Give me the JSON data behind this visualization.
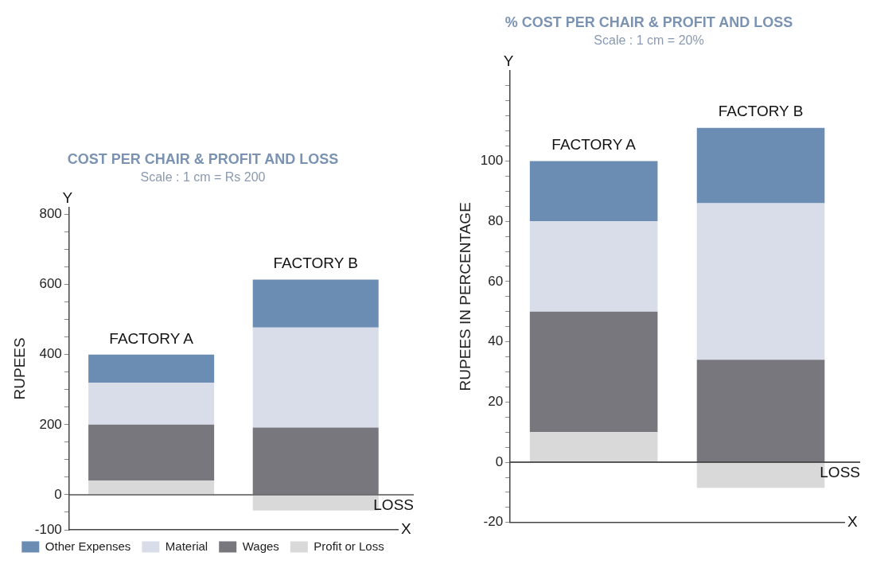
{
  "chart_data": [
    {
      "type": "bar",
      "title": "COST PER CHAIR & PROFIT AND LOSS",
      "subtitle": "Scale : 1 cm = Rs 200",
      "ylabel": "RUPEES",
      "categories": [
        "FACTORY A",
        "FACTORY B"
      ],
      "stacked": true,
      "series": [
        {
          "name": "Profit or Loss",
          "color": "#d9d9d9",
          "values": [
            40,
            -45
          ]
        },
        {
          "name": "Wages",
          "color": "#77777d",
          "values": [
            160,
            192
          ]
        },
        {
          "name": "Material",
          "color": "#d8dde9",
          "values": [
            120,
            285
          ]
        },
        {
          "name": "Other Expenses",
          "color": "#6c8db3",
          "values": [
            80,
            137
          ]
        }
      ],
      "ylim": [
        -100,
        820
      ],
      "yticks": [
        -100,
        {
          "value": -50,
          "label": null
        },
        0,
        {
          "value": 50,
          "label": null
        },
        {
          "value": 100,
          "label": null
        },
        {
          "value": 150,
          "label": null
        },
        200,
        {
          "value": 250,
          "label": null
        },
        {
          "value": 300,
          "label": null
        },
        {
          "value": 350,
          "label": null
        },
        400,
        {
          "value": 450,
          "label": null
        },
        {
          "value": 500,
          "label": null
        },
        {
          "value": 550,
          "label": null
        },
        600,
        {
          "value": 650,
          "label": null
        },
        {
          "value": 700,
          "label": null
        },
        {
          "value": 750,
          "label": null
        },
        800
      ],
      "ref_lines": [
        {
          "axis": "y",
          "value": 0,
          "color": "#555555"
        }
      ],
      "annotations": [
        "Y",
        "X",
        "LOSS"
      ],
      "grid": false,
      "legend": "bottom",
      "tick_labels": "y"
    },
    {
      "type": "bar",
      "title": "% COST PER CHAIR & PROFIT AND LOSS",
      "subtitle": "Scale : 1 cm = 20%",
      "ylabel": "RUPEES IN PERCENTAGE",
      "categories": [
        "FACTORY A",
        "FACTORY B"
      ],
      "stacked": true,
      "series": [
        {
          "color": "#d9d9d9",
          "values": [
            10,
            -8.5
          ]
        },
        {
          "color": "#77777d",
          "values": [
            40,
            34
          ]
        },
        {
          "color": "#d8dde9",
          "values": [
            30,
            52
          ]
        },
        {
          "color": "#6c8db3",
          "values": [
            20,
            25
          ]
        }
      ],
      "ylim": [
        -20,
        130
      ],
      "yticks": [
        -20,
        {
          "value": -15,
          "label": null
        },
        {
          "value": -10,
          "label": null
        },
        {
          "value": -5,
          "label": null
        },
        0,
        {
          "value": 5,
          "label": null
        },
        {
          "value": 10,
          "label": null
        },
        {
          "value": 15,
          "label": null
        },
        20,
        {
          "value": 25,
          "label": null
        },
        {
          "value": 30,
          "label": null
        },
        {
          "value": 35,
          "label": null
        },
        40,
        {
          "value": 45,
          "label": null
        },
        {
          "value": 50,
          "label": null
        },
        {
          "value": 55,
          "label": null
        },
        60,
        {
          "value": 65,
          "label": null
        },
        {
          "value": 70,
          "label": null
        },
        {
          "value": 75,
          "label": null
        },
        80,
        {
          "value": 85,
          "label": null
        },
        {
          "value": 90,
          "label": null
        },
        {
          "value": 95,
          "label": null
        },
        100,
        {
          "value": 105,
          "label": null
        },
        {
          "value": 110,
          "label": null
        },
        {
          "value": 115,
          "label": null
        },
        {
          "value": 120,
          "label": null
        },
        {
          "value": 125,
          "label": null
        }
      ],
      "ref_lines": [
        {
          "axis": "y",
          "value": 0,
          "color": "#222222"
        }
      ],
      "annotations": [
        "Y",
        "X",
        "LOSS"
      ],
      "grid": false,
      "tick_labels": "y"
    }
  ]
}
